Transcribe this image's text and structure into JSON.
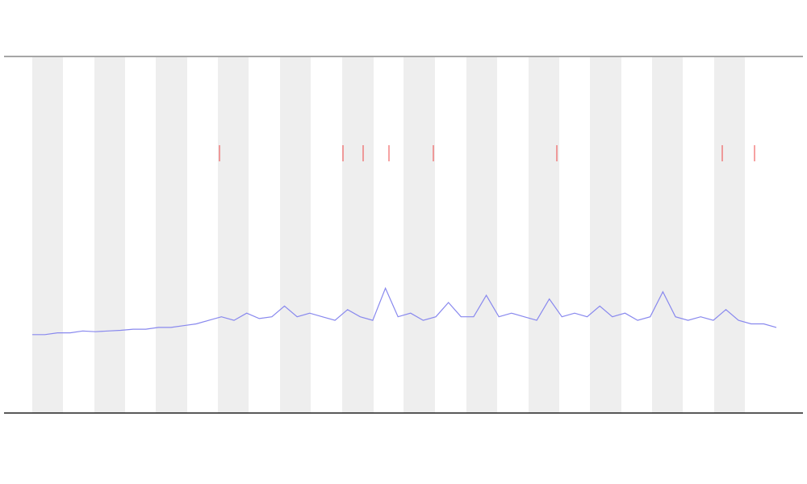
{
  "chart_data": {
    "type": "line",
    "color": "#8888ee",
    "values": [
      22,
      22,
      22.5,
      22.5,
      23,
      22.8,
      23,
      23.2,
      23.5,
      23.5,
      24,
      24,
      24.5,
      25,
      26,
      27,
      26,
      28,
      26.5,
      27,
      30,
      27,
      28,
      27,
      26,
      29,
      27,
      26,
      35,
      27,
      28,
      26,
      27,
      31,
      27,
      27,
      33,
      27,
      28,
      27,
      26,
      32,
      27,
      28,
      27,
      30,
      27,
      28,
      26,
      27,
      34,
      27,
      26,
      27,
      26,
      29,
      26,
      25,
      25,
      24
    ],
    "ylim": [
      0,
      100
    ]
  }
}
